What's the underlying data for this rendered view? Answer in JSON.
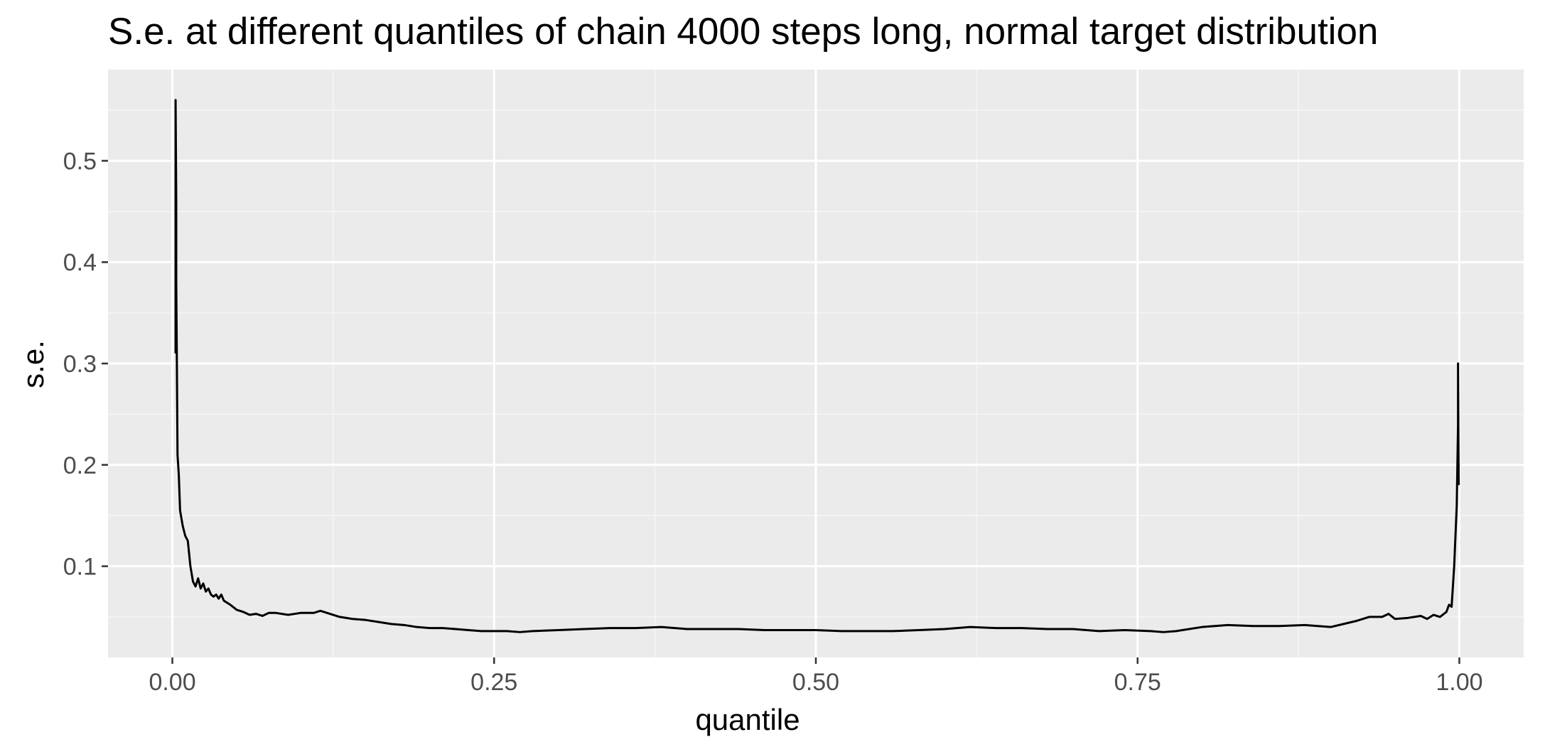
{
  "colors": {
    "panel_background": "#EBEBEB",
    "grid_major": "#FFFFFF",
    "grid_minor": "#F5F5F5",
    "line": "#000000",
    "tick_text": "#4D4D4D",
    "tick_mark": "#333333"
  },
  "chart_data": {
    "type": "line",
    "title": "S.e. at different quantiles of chain 4000 steps long, normal target distribution",
    "xlabel": "quantile",
    "ylabel": "s.e.",
    "xlim": [
      -0.05,
      1.05
    ],
    "ylim": [
      0.01,
      0.59
    ],
    "x_ticks": [
      0.0,
      0.25,
      0.5,
      0.75,
      1.0
    ],
    "x_tick_labels": [
      "0.00",
      "0.25",
      "0.50",
      "0.75",
      "1.00"
    ],
    "y_ticks": [
      0.1,
      0.2,
      0.3,
      0.4,
      0.5
    ],
    "y_tick_labels": [
      "0.1",
      "0.2",
      "0.3",
      "0.4",
      "0.5"
    ],
    "grid": true,
    "legend": "none",
    "series": [
      {
        "x": [
          0.0025,
          0.0025,
          0.003,
          0.003,
          0.0035,
          0.004,
          0.005,
          0.006,
          0.008,
          0.01,
          0.012,
          0.014,
          0.016,
          0.018,
          0.02,
          0.022,
          0.024,
          0.026,
          0.028,
          0.03,
          0.032,
          0.034,
          0.036,
          0.038,
          0.04,
          0.045,
          0.05,
          0.055,
          0.06,
          0.065,
          0.07,
          0.075,
          0.08,
          0.09,
          0.1,
          0.11,
          0.115,
          0.12,
          0.13,
          0.14,
          0.15,
          0.16,
          0.17,
          0.18,
          0.19,
          0.2,
          0.21,
          0.22,
          0.23,
          0.24,
          0.25,
          0.26,
          0.27,
          0.28,
          0.3,
          0.32,
          0.34,
          0.36,
          0.38,
          0.4,
          0.42,
          0.44,
          0.46,
          0.48,
          0.5,
          0.52,
          0.54,
          0.56,
          0.58,
          0.6,
          0.62,
          0.64,
          0.66,
          0.68,
          0.7,
          0.72,
          0.74,
          0.76,
          0.77,
          0.78,
          0.8,
          0.82,
          0.84,
          0.86,
          0.88,
          0.9,
          0.91,
          0.92,
          0.93,
          0.94,
          0.945,
          0.95,
          0.96,
          0.97,
          0.975,
          0.98,
          0.985,
          0.99,
          0.992,
          0.994,
          0.995,
          0.996,
          0.997,
          0.998,
          0.9985,
          0.999,
          0.999,
          0.9993,
          0.9995
        ],
        "values": [
          0.31,
          0.56,
          0.46,
          0.38,
          0.3,
          0.21,
          0.19,
          0.155,
          0.14,
          0.13,
          0.125,
          0.1,
          0.085,
          0.08,
          0.088,
          0.078,
          0.083,
          0.075,
          0.078,
          0.072,
          0.07,
          0.072,
          0.068,
          0.072,
          0.066,
          0.062,
          0.057,
          0.055,
          0.052,
          0.053,
          0.051,
          0.054,
          0.054,
          0.052,
          0.054,
          0.054,
          0.056,
          0.054,
          0.05,
          0.048,
          0.047,
          0.045,
          0.043,
          0.042,
          0.04,
          0.039,
          0.039,
          0.038,
          0.037,
          0.036,
          0.036,
          0.036,
          0.035,
          0.036,
          0.037,
          0.038,
          0.039,
          0.039,
          0.04,
          0.038,
          0.038,
          0.038,
          0.037,
          0.037,
          0.037,
          0.036,
          0.036,
          0.036,
          0.037,
          0.038,
          0.04,
          0.039,
          0.039,
          0.038,
          0.038,
          0.036,
          0.037,
          0.036,
          0.035,
          0.036,
          0.04,
          0.042,
          0.041,
          0.041,
          0.042,
          0.04,
          0.043,
          0.046,
          0.05,
          0.05,
          0.053,
          0.048,
          0.049,
          0.051,
          0.048,
          0.052,
          0.05,
          0.055,
          0.062,
          0.06,
          0.08,
          0.1,
          0.13,
          0.16,
          0.2,
          0.24,
          0.3,
          0.22,
          0.18
        ]
      }
    ]
  }
}
